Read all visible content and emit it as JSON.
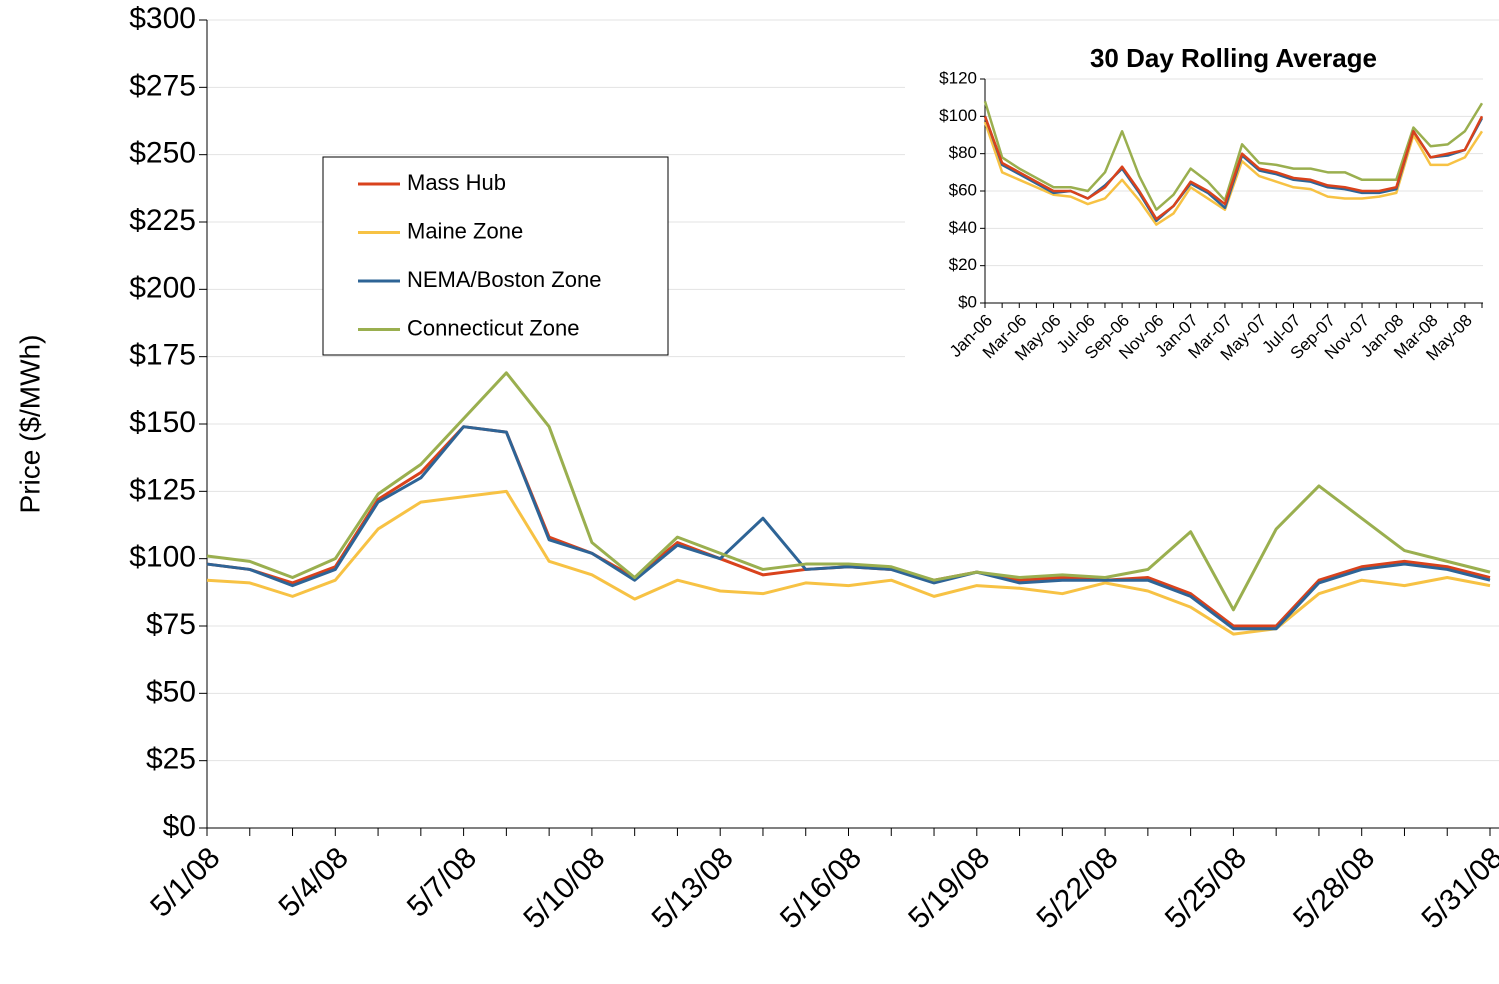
{
  "chart_data": [
    {
      "type": "line",
      "y_label": "Price ($/MWh)",
      "legend": true,
      "grid": true,
      "categories": [
        "5/1/08",
        null,
        null,
        "5/4/08",
        null,
        null,
        "5/7/08",
        null,
        null,
        "5/10/08",
        null,
        null,
        "5/13/08",
        null,
        null,
        "5/16/08",
        null,
        null,
        "5/19/08",
        null,
        null,
        "5/22/08",
        null,
        null,
        "5/25/08",
        null,
        null,
        "5/28/08",
        null,
        null,
        "5/31/08"
      ],
      "ylim": [
        0,
        300
      ],
      "yticks": [
        {
          "value": 0,
          "label": "$0"
        },
        {
          "value": 25,
          "label": "$25"
        },
        {
          "value": 50,
          "label": "$50"
        },
        {
          "value": 75,
          "label": "$75"
        },
        {
          "value": 100,
          "label": "$100"
        },
        {
          "value": 125,
          "label": "$125"
        },
        {
          "value": 150,
          "label": "$150"
        },
        {
          "value": 175,
          "label": "$175"
        },
        {
          "value": 200,
          "label": "$200"
        },
        {
          "value": 225,
          "label": "$225"
        },
        {
          "value": 250,
          "label": "$250"
        },
        {
          "value": 275,
          "label": "$275"
        },
        {
          "value": 300,
          "label": "$300"
        }
      ],
      "series": [
        {
          "name": "Mass Hub",
          "color": "#d9421c",
          "values": [
            98,
            96,
            91,
            97,
            122,
            132,
            149,
            147,
            108,
            102,
            93,
            106,
            100,
            94,
            96,
            97,
            96,
            92,
            95,
            92,
            93,
            92,
            93,
            87,
            75,
            75,
            92,
            97,
            99,
            97,
            93
          ]
        },
        {
          "name": "Maine Zone",
          "color": "#f7c244",
          "values": [
            92,
            91,
            86,
            92,
            111,
            121,
            123,
            125,
            99,
            94,
            85,
            92,
            88,
            87,
            91,
            90,
            92,
            86,
            90,
            89,
            87,
            91,
            88,
            82,
            72,
            74,
            87,
            92,
            90,
            93,
            90
          ]
        },
        {
          "name": "NEMA/Boston Zone",
          "color": "#2e6496",
          "values": [
            98,
            96,
            90,
            96,
            121,
            130,
            149,
            147,
            107,
            102,
            92,
            105,
            100,
            115,
            96,
            97,
            96,
            91,
            95,
            91,
            92,
            92,
            92,
            86,
            74,
            74,
            91,
            96,
            98,
            96,
            92
          ]
        },
        {
          "name": "Connecticut Zone",
          "color": "#9aaf4f",
          "values": [
            101,
            99,
            93,
            100,
            124,
            135,
            152,
            169,
            149,
            106,
            93,
            108,
            102,
            96,
            98,
            98,
            97,
            92,
            95,
            93,
            94,
            93,
            96,
            110,
            81,
            111,
            127,
            115,
            103,
            99,
            95
          ]
        }
      ]
    },
    {
      "type": "line",
      "title": "30 Day Rolling Average",
      "grid": true,
      "categories": [
        "Jan-06",
        null,
        "Mar-06",
        null,
        "May-06",
        null,
        "Jul-06",
        null,
        "Sep-06",
        null,
        "Nov-06",
        null,
        "Jan-07",
        null,
        "Mar-07",
        null,
        "May-07",
        null,
        "Jul-07",
        null,
        "Sep-07",
        null,
        "Nov-07",
        null,
        "Jan-08",
        null,
        "Mar-08",
        null,
        "May-08",
        null
      ],
      "ylim": [
        0,
        120
      ],
      "yticks": [
        {
          "value": 0,
          "label": "$0"
        },
        {
          "value": 20,
          "label": "$20"
        },
        {
          "value": 40,
          "label": "$40"
        },
        {
          "value": 60,
          "label": "$60"
        },
        {
          "value": 80,
          "label": "$80"
        },
        {
          "value": 100,
          "label": "$100"
        },
        {
          "value": 120,
          "label": "$120"
        }
      ],
      "series": [
        {
          "color": "#f7c244",
          "values": [
            97,
            70,
            66,
            62,
            58,
            57,
            53,
            56,
            66,
            55,
            42,
            48,
            62,
            56,
            50,
            76,
            68,
            65,
            62,
            61,
            57,
            56,
            56,
            57,
            59,
            90,
            74,
            74,
            78,
            92
          ]
        },
        {
          "color": "#9aaf4f",
          "values": [
            108,
            78,
            72,
            67,
            62,
            62,
            60,
            70,
            92,
            68,
            50,
            58,
            72,
            65,
            55,
            85,
            75,
            74,
            72,
            72,
            70,
            70,
            66,
            66,
            66,
            94,
            84,
            85,
            92,
            107
          ]
        },
        {
          "color": "#2e6496",
          "values": [
            100,
            74,
            69,
            64,
            59,
            60,
            56,
            63,
            72,
            59,
            44,
            52,
            64,
            59,
            51,
            79,
            71,
            69,
            66,
            65,
            62,
            61,
            59,
            59,
            61,
            92,
            78,
            79,
            82,
            99
          ]
        },
        {
          "color": "#d9421c",
          "values": [
            100,
            75,
            70,
            65,
            60,
            60,
            56,
            62,
            73,
            60,
            45,
            52,
            65,
            60,
            53,
            80,
            72,
            70,
            67,
            66,
            63,
            62,
            60,
            60,
            62,
            92,
            78,
            80,
            82,
            100
          ]
        }
      ]
    }
  ]
}
